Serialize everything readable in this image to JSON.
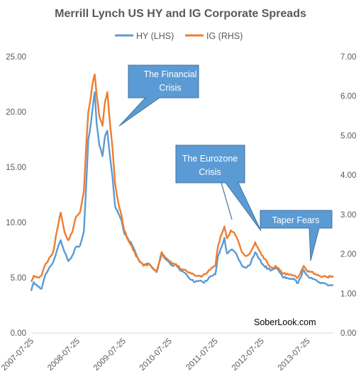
{
  "chart_data": {
    "type": "line",
    "title": "Merrill Lynch US HY and IG Corporate Spreads",
    "legend_position": "top-center",
    "grid": false,
    "x_ticks": [
      "2007-07-25",
      "2008-07-25",
      "2009-07-25",
      "2010-07-25",
      "2011-07-25",
      "2012-07-25",
      "2013-07-25"
    ],
    "x_range": [
      "2007-07-25",
      "2014-02-15"
    ],
    "y_left": {
      "ticks": [
        "0.00",
        "5.00",
        "10.00",
        "15.00",
        "20.00",
        "25.00"
      ],
      "range": [
        0,
        25
      ]
    },
    "y_right": {
      "ticks": [
        "0.00",
        "1.00",
        "2.00",
        "3.00",
        "4.00",
        "5.00",
        "6.00",
        "7.00"
      ],
      "range": [
        0,
        7
      ]
    },
    "series": [
      {
        "name": "HY (LHS)",
        "axis": "left",
        "color": "#5B9BD5",
        "points": [
          [
            "2007-07-25",
            3.8
          ],
          [
            "2007-08-15",
            4.6
          ],
          [
            "2007-09-15",
            4.2
          ],
          [
            "2007-10-15",
            4.0
          ],
          [
            "2007-11-15",
            5.3
          ],
          [
            "2007-12-15",
            5.9
          ],
          [
            "2008-01-15",
            6.4
          ],
          [
            "2008-02-15",
            7.5
          ],
          [
            "2008-03-15",
            8.4
          ],
          [
            "2008-04-15",
            7.3
          ],
          [
            "2008-05-15",
            6.5
          ],
          [
            "2008-06-15",
            7.0
          ],
          [
            "2008-07-15",
            7.8
          ],
          [
            "2008-08-15",
            7.9
          ],
          [
            "2008-09-15",
            9.2
          ],
          [
            "2008-10-01",
            12.8
          ],
          [
            "2008-10-20",
            17.5
          ],
          [
            "2008-11-10",
            19.0
          ],
          [
            "2008-11-25",
            20.5
          ],
          [
            "2008-12-10",
            21.8
          ],
          [
            "2008-12-25",
            19.0
          ],
          [
            "2009-01-15",
            17.0
          ],
          [
            "2009-02-10",
            16.0
          ],
          [
            "2009-03-01",
            17.8
          ],
          [
            "2009-03-20",
            18.3
          ],
          [
            "2009-04-10",
            16.0
          ],
          [
            "2009-05-01",
            14.0
          ],
          [
            "2009-05-20",
            11.5
          ],
          [
            "2009-06-15",
            10.8
          ],
          [
            "2009-07-10",
            10.2
          ],
          [
            "2009-08-01",
            9.0
          ],
          [
            "2009-09-01",
            8.5
          ],
          [
            "2009-10-01",
            8.0
          ],
          [
            "2009-11-01",
            7.2
          ],
          [
            "2009-12-01",
            6.5
          ],
          [
            "2010-01-01",
            6.1
          ],
          [
            "2010-02-10",
            6.3
          ],
          [
            "2010-03-10",
            5.9
          ],
          [
            "2010-04-15",
            5.5
          ],
          [
            "2010-05-25",
            7.2
          ],
          [
            "2010-06-15",
            6.8
          ],
          [
            "2010-07-15",
            6.5
          ],
          [
            "2010-08-15",
            6.1
          ],
          [
            "2010-09-15",
            6.2
          ],
          [
            "2010-10-15",
            5.7
          ],
          [
            "2010-11-15",
            5.5
          ],
          [
            "2010-12-15",
            5.2
          ],
          [
            "2011-01-15",
            4.8
          ],
          [
            "2011-02-15",
            4.6
          ],
          [
            "2011-03-15",
            4.7
          ],
          [
            "2011-04-15",
            4.6
          ],
          [
            "2011-05-15",
            4.7
          ],
          [
            "2011-06-15",
            5.1
          ],
          [
            "2011-07-25",
            5.3
          ],
          [
            "2011-08-15",
            7.0
          ],
          [
            "2011-09-05",
            7.6
          ],
          [
            "2011-10-05",
            8.6
          ],
          [
            "2011-10-25",
            7.2
          ],
          [
            "2011-11-25",
            7.5
          ],
          [
            "2011-12-20",
            7.4
          ],
          [
            "2012-01-20",
            6.8
          ],
          [
            "2012-02-20",
            6.1
          ],
          [
            "2012-03-20",
            5.9
          ],
          [
            "2012-04-20",
            6.1
          ],
          [
            "2012-06-05",
            7.3
          ],
          [
            "2012-07-05",
            6.7
          ],
          [
            "2012-08-05",
            6.2
          ],
          [
            "2012-09-15",
            5.8
          ],
          [
            "2012-10-15",
            5.7
          ],
          [
            "2012-11-15",
            5.9
          ],
          [
            "2012-12-15",
            5.5
          ],
          [
            "2013-01-15",
            5.0
          ],
          [
            "2013-02-15",
            5.0
          ],
          [
            "2013-03-15",
            4.9
          ],
          [
            "2013-04-15",
            4.8
          ],
          [
            "2013-05-10",
            4.5
          ],
          [
            "2013-06-25",
            5.7
          ],
          [
            "2013-07-25",
            5.2
          ],
          [
            "2013-08-25",
            5.0
          ],
          [
            "2013-09-25",
            4.8
          ],
          [
            "2013-10-25",
            4.6
          ],
          [
            "2013-11-25",
            4.5
          ],
          [
            "2013-12-25",
            4.4
          ],
          [
            "2014-01-25",
            4.3
          ],
          [
            "2014-02-15",
            4.3
          ]
        ]
      },
      {
        "name": "IG (RHS)",
        "axis": "right",
        "color": "#ED7D31",
        "points": [
          [
            "2007-07-25",
            1.3
          ],
          [
            "2007-08-15",
            1.45
          ],
          [
            "2007-09-15",
            1.4
          ],
          [
            "2007-10-15",
            1.45
          ],
          [
            "2007-11-15",
            1.75
          ],
          [
            "2007-12-15",
            1.9
          ],
          [
            "2008-01-15",
            2.05
          ],
          [
            "2008-02-15",
            2.6
          ],
          [
            "2008-03-15",
            3.05
          ],
          [
            "2008-04-15",
            2.55
          ],
          [
            "2008-05-15",
            2.35
          ],
          [
            "2008-06-15",
            2.55
          ],
          [
            "2008-07-15",
            2.95
          ],
          [
            "2008-08-15",
            3.05
          ],
          [
            "2008-09-15",
            3.6
          ],
          [
            "2008-10-01",
            4.6
          ],
          [
            "2008-10-20",
            5.6
          ],
          [
            "2008-11-10",
            6.0
          ],
          [
            "2008-11-25",
            6.35
          ],
          [
            "2008-12-10",
            6.55
          ],
          [
            "2008-12-25",
            6.05
          ],
          [
            "2009-01-15",
            5.5
          ],
          [
            "2009-02-10",
            5.25
          ],
          [
            "2009-03-01",
            5.85
          ],
          [
            "2009-03-20",
            6.1
          ],
          [
            "2009-04-10",
            5.3
          ],
          [
            "2009-05-01",
            4.65
          ],
          [
            "2009-05-20",
            3.8
          ],
          [
            "2009-06-15",
            3.3
          ],
          [
            "2009-07-10",
            3.0
          ],
          [
            "2009-08-01",
            2.6
          ],
          [
            "2009-09-01",
            2.35
          ],
          [
            "2009-10-01",
            2.2
          ],
          [
            "2009-11-01",
            1.95
          ],
          [
            "2009-12-01",
            1.8
          ],
          [
            "2010-01-01",
            1.7
          ],
          [
            "2010-02-10",
            1.75
          ],
          [
            "2010-03-10",
            1.65
          ],
          [
            "2010-04-15",
            1.55
          ],
          [
            "2010-05-25",
            2.05
          ],
          [
            "2010-06-15",
            1.95
          ],
          [
            "2010-07-15",
            1.85
          ],
          [
            "2010-08-15",
            1.75
          ],
          [
            "2010-09-15",
            1.75
          ],
          [
            "2010-10-15",
            1.65
          ],
          [
            "2010-11-15",
            1.6
          ],
          [
            "2010-12-15",
            1.55
          ],
          [
            "2011-01-15",
            1.5
          ],
          [
            "2011-02-15",
            1.45
          ],
          [
            "2011-03-15",
            1.45
          ],
          [
            "2011-04-15",
            1.45
          ],
          [
            "2011-05-15",
            1.5
          ],
          [
            "2011-06-15",
            1.6
          ],
          [
            "2011-07-25",
            1.7
          ],
          [
            "2011-08-15",
            2.2
          ],
          [
            "2011-09-05",
            2.45
          ],
          [
            "2011-10-05",
            2.7
          ],
          [
            "2011-10-25",
            2.4
          ],
          [
            "2011-11-25",
            2.6
          ],
          [
            "2011-12-20",
            2.55
          ],
          [
            "2012-01-20",
            2.35
          ],
          [
            "2012-02-20",
            2.05
          ],
          [
            "2012-03-20",
            1.95
          ],
          [
            "2012-04-20",
            2.0
          ],
          [
            "2012-06-05",
            2.3
          ],
          [
            "2012-07-05",
            2.1
          ],
          [
            "2012-08-05",
            1.95
          ],
          [
            "2012-09-15",
            1.75
          ],
          [
            "2012-10-15",
            1.65
          ],
          [
            "2012-11-15",
            1.7
          ],
          [
            "2012-12-15",
            1.6
          ],
          [
            "2013-01-15",
            1.5
          ],
          [
            "2013-02-15",
            1.5
          ],
          [
            "2013-03-15",
            1.48
          ],
          [
            "2013-04-15",
            1.45
          ],
          [
            "2013-05-10",
            1.4
          ],
          [
            "2013-06-25",
            1.7
          ],
          [
            "2013-07-25",
            1.55
          ],
          [
            "2013-08-25",
            1.55
          ],
          [
            "2013-09-25",
            1.5
          ],
          [
            "2013-10-25",
            1.45
          ],
          [
            "2013-11-25",
            1.43
          ],
          [
            "2013-12-25",
            1.42
          ],
          [
            "2014-01-25",
            1.42
          ],
          [
            "2014-02-15",
            1.41
          ]
        ]
      }
    ],
    "annotations": [
      {
        "name": "financial-crisis",
        "lines": [
          "The Financial",
          "Crisis"
        ]
      },
      {
        "name": "eurozone-crisis",
        "lines": [
          "The Eurozone",
          "Crisis"
        ]
      },
      {
        "name": "taper-fears",
        "lines": [
          "Taper Fears"
        ]
      }
    ],
    "credit": "SoberLook.com",
    "callout_color": "#5B9BD5"
  }
}
